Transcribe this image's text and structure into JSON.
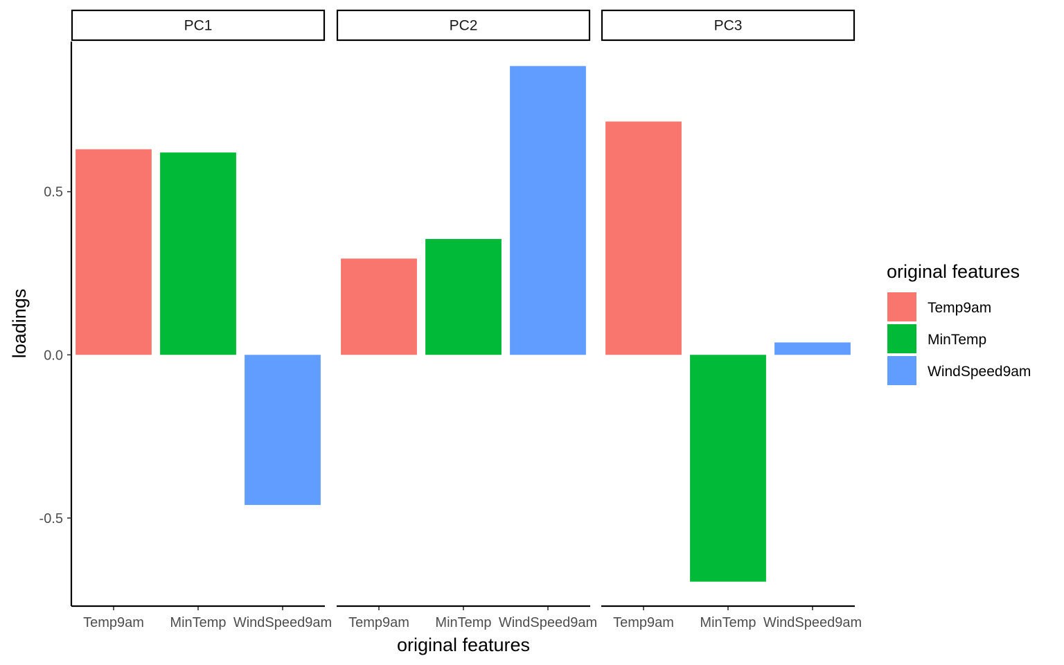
{
  "chart_data": {
    "type": "bar",
    "title": "",
    "xlabel": "original features",
    "ylabel": "loadings",
    "ylim": [
      -0.77,
      0.96
    ],
    "yticks": [
      -0.5,
      0.0,
      0.5
    ],
    "ytick_labels": [
      "-0.5",
      "0.0",
      "0.5"
    ],
    "grid": false,
    "facets": [
      "PC1",
      "PC2",
      "PC3"
    ],
    "categories": [
      "Temp9am",
      "MinTemp",
      "WindSpeed9am"
    ],
    "series": [
      {
        "facet": "PC1",
        "values": [
          0.63,
          0.62,
          -0.46
        ]
      },
      {
        "facet": "PC2",
        "values": [
          0.295,
          0.355,
          0.885
        ]
      },
      {
        "facet": "PC3",
        "values": [
          0.715,
          -0.695,
          0.038
        ]
      }
    ],
    "colors": {
      "Temp9am": "#F8766D",
      "MinTemp": "#00BA38",
      "WindSpeed9am": "#619CFF"
    },
    "legend": {
      "title": "original features",
      "position": "right",
      "items": [
        "Temp9am",
        "MinTemp",
        "WindSpeed9am"
      ]
    }
  }
}
